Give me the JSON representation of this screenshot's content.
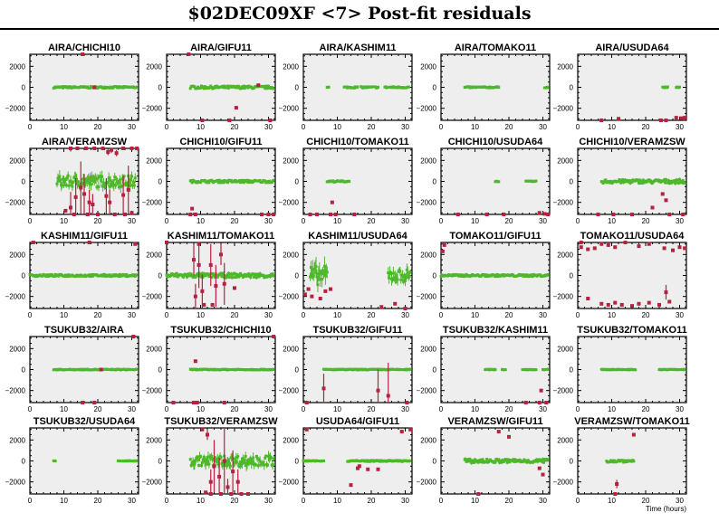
{
  "title": "$02DEC09XF <7> Post-fit residuals",
  "colors": {
    "good": "#4db82a",
    "bad": "#b5213f",
    "plot_bg": "#eeeeee"
  },
  "chart_data": {
    "type": "scatter",
    "xlabel": "Time (hours)",
    "xlim": [
      0,
      32
    ],
    "ylim": [
      -3150,
      3150
    ],
    "xticks": [
      "0",
      "10",
      "20",
      "30"
    ],
    "yticks": [
      {
        "v": 2000,
        "label": "2000"
      },
      {
        "v": 0,
        "label": "0"
      },
      {
        "v": -2000,
        "label": "−2000"
      }
    ],
    "panels": [
      {
        "name": "AIRA/CHICHI10",
        "good": [
          [
            7,
            31.5,
            80
          ]
        ],
        "bad": [
          [
            15.5,
            3150,
            0
          ],
          [
            19,
            0,
            0
          ]
        ]
      },
      {
        "name": "AIRA/GIFU11",
        "good": [
          [
            7,
            31.5,
            130
          ]
        ],
        "bad": [
          [
            6.5,
            3150,
            0
          ],
          [
            10.5,
            -3150,
            0
          ],
          [
            18.5,
            -3150,
            0
          ],
          [
            20.5,
            -1950,
            0
          ],
          [
            27,
            200,
            0
          ],
          [
            30.5,
            -3150,
            0
          ]
        ]
      },
      {
        "name": "AIRA/KASHIM11",
        "good": [
          [
            7,
            7.5,
            40
          ],
          [
            12,
            16,
            70
          ],
          [
            17,
            22,
            70
          ],
          [
            24,
            31,
            70
          ]
        ],
        "bad": []
      },
      {
        "name": "AIRA/TOMAKO11",
        "good": [
          [
            7,
            17,
            60
          ],
          [
            30.5,
            31.5,
            50
          ]
        ],
        "bad": []
      },
      {
        "name": "AIRA/USUDA64",
        "good": [
          [
            25,
            26.5,
            40
          ],
          [
            29,
            30,
            40
          ]
        ],
        "bad": [
          [
            7,
            -3150,
            0
          ],
          [
            12,
            -3000,
            0
          ],
          [
            24.5,
            -3150,
            0
          ],
          [
            26,
            -3150,
            0
          ],
          [
            29,
            -2900,
            0
          ],
          [
            30.5,
            -2950,
            0
          ],
          [
            31.5,
            -2900,
            0
          ]
        ]
      },
      {
        "name": "AIRA/VERAMZSW",
        "good": [
          [
            8,
            31,
            550
          ]
        ],
        "bad": [
          [
            12,
            3150,
            300
          ],
          [
            14,
            3150,
            0
          ],
          [
            16.5,
            3150,
            0
          ],
          [
            19,
            3150,
            0
          ],
          [
            21.5,
            3150,
            0
          ],
          [
            23,
            2800,
            300
          ],
          [
            24,
            3000,
            300
          ],
          [
            25.5,
            2700,
            300
          ],
          [
            27.5,
            3150,
            0
          ],
          [
            30,
            3150,
            0
          ],
          [
            31.5,
            3150,
            0
          ],
          [
            10.5,
            -2800,
            0
          ],
          [
            12,
            -2500,
            1500
          ],
          [
            13.5,
            -1500,
            1800
          ],
          [
            15,
            -600,
            2500
          ],
          [
            16,
            -1200,
            1900
          ],
          [
            17.5,
            -2000,
            1200
          ],
          [
            18.5,
            -2200,
            1000
          ],
          [
            22.5,
            -1400,
            1700
          ],
          [
            23.5,
            -2000,
            1200
          ],
          [
            27.5,
            -1300,
            1800
          ],
          [
            29,
            -800,
            2300
          ],
          [
            30,
            -3000,
            0
          ],
          [
            13,
            -3150,
            0
          ],
          [
            17,
            -3150,
            0
          ],
          [
            20,
            -3150,
            0
          ],
          [
            25,
            -3150,
            0
          ],
          [
            28,
            -3150,
            0
          ]
        ]
      },
      {
        "name": "CHICHI10/GIFU11",
        "good": [
          [
            7,
            31.5,
            120
          ]
        ],
        "bad": [
          [
            7.5,
            -2600,
            0
          ],
          [
            7,
            -3150,
            0
          ],
          [
            8.5,
            -3150,
            0
          ],
          [
            28,
            -3150,
            0
          ],
          [
            30,
            -3150,
            0
          ],
          [
            31.5,
            -3150,
            0
          ]
        ]
      },
      {
        "name": "CHICHI10/TOMAKO11",
        "good": [
          [
            7,
            13.5,
            70
          ]
        ],
        "bad": [
          [
            8.5,
            -2000,
            0
          ],
          [
            2,
            -3150,
            0
          ],
          [
            4,
            -3150,
            0
          ],
          [
            8,
            -3150,
            0
          ],
          [
            9.5,
            -3150,
            0
          ],
          [
            15,
            -3150,
            0
          ]
        ]
      },
      {
        "name": "CHICHI10/USUDA64",
        "good": [
          [
            16,
            17,
            30
          ],
          [
            25,
            28,
            40
          ]
        ],
        "bad": [
          [
            5,
            -3150,
            0
          ],
          [
            13.5,
            -3150,
            0
          ],
          [
            18.5,
            -3150,
            0
          ],
          [
            29,
            -3000,
            0
          ],
          [
            30.5,
            -3100,
            0
          ],
          [
            31.5,
            -3150,
            0
          ]
        ]
      },
      {
        "name": "CHICHI10/VERAMZSW",
        "good": [
          [
            7,
            31.5,
            180
          ]
        ],
        "bad": [
          [
            6,
            -3150,
            0
          ],
          [
            10.5,
            -3150,
            0
          ],
          [
            16,
            -3150,
            0
          ],
          [
            22,
            -2500,
            0
          ],
          [
            25,
            -1200,
            0
          ],
          [
            26,
            -1800,
            0
          ],
          [
            27,
            -3150,
            0
          ],
          [
            31,
            -3150,
            0
          ]
        ]
      },
      {
        "name": "KASHIM11/GIFU11",
        "good": [
          [
            0,
            31.5,
            100
          ]
        ],
        "bad": [
          [
            1,
            3150,
            0
          ],
          [
            17.5,
            3150,
            0
          ],
          [
            31,
            3000,
            0
          ]
        ]
      },
      {
        "name": "KASHIM11/TOMAKO11",
        "good": [
          [
            0,
            31.5,
            200
          ]
        ],
        "bad": [
          [
            8,
            1500,
            1500
          ],
          [
            8.5,
            -2000,
            1200
          ],
          [
            9.5,
            1000,
            2200
          ],
          [
            10.5,
            -1500,
            1600
          ],
          [
            11,
            -2800,
            0
          ],
          [
            13,
            1000,
            2000
          ],
          [
            13.5,
            -2800,
            0
          ],
          [
            14.5,
            -1000,
            2000
          ],
          [
            16,
            2000,
            1000
          ],
          [
            17,
            -800,
            2000
          ],
          [
            20,
            -1200,
            0
          ],
          [
            0,
            3150,
            0
          ],
          [
            9.5,
            3000,
            0
          ]
        ]
      },
      {
        "name": "KASHIM11/USUDA64",
        "good": [
          [
            2,
            7,
            900
          ],
          [
            25,
            31.5,
            600
          ]
        ],
        "bad": [
          [
            0.5,
            -1800,
            0
          ],
          [
            1.5,
            -1300,
            0
          ],
          [
            2.5,
            -2000,
            0
          ],
          [
            5,
            -2200,
            0
          ],
          [
            6.5,
            -1500,
            0
          ],
          [
            8,
            -1300,
            0
          ],
          [
            23,
            -3000,
            0
          ],
          [
            27,
            -2700,
            0
          ],
          [
            30,
            -3150,
            0
          ]
        ]
      },
      {
        "name": "TOMAKO11/GIFU11",
        "good": [
          [
            0,
            31.5,
            100
          ]
        ],
        "bad": [
          [
            0.5,
            2300,
            0
          ],
          [
            1,
            2900,
            0
          ]
        ]
      },
      {
        "name": "TOMAKO11/USUDA64",
        "good": [],
        "bad": [
          [
            1,
            2700,
            0
          ],
          [
            1,
            3150,
            0
          ],
          [
            3,
            2500,
            0
          ],
          [
            5,
            2600,
            0
          ],
          [
            7,
            3000,
            0
          ],
          [
            9,
            2900,
            0
          ],
          [
            11,
            2700,
            0
          ],
          [
            14,
            3150,
            0
          ],
          [
            18,
            2800,
            0
          ],
          [
            21,
            3000,
            0
          ],
          [
            25.5,
            2600,
            0
          ],
          [
            28,
            2400,
            0
          ],
          [
            30,
            2700,
            0
          ],
          [
            31.5,
            2600,
            0
          ],
          [
            7,
            -2700,
            0
          ],
          [
            9,
            -2800,
            0
          ],
          [
            11,
            -2600,
            0
          ],
          [
            13,
            -2800,
            0
          ],
          [
            16,
            -2900,
            0
          ],
          [
            18,
            -2700,
            0
          ],
          [
            21,
            -2600,
            0
          ],
          [
            24,
            -2800,
            0
          ],
          [
            26,
            -1600,
            700
          ],
          [
            27,
            -2500,
            0
          ],
          [
            3,
            -2200,
            0
          ]
        ]
      },
      {
        "name": "TSUKUB32/AIRA",
        "good": [
          [
            7,
            31.5,
            40
          ]
        ],
        "bad": [
          [
            15.5,
            -3150,
            0
          ],
          [
            19,
            -3150,
            0
          ],
          [
            21,
            0,
            0
          ],
          [
            30.5,
            3150,
            0
          ]
        ]
      },
      {
        "name": "TSUKUB32/CHICHI10",
        "good": [
          [
            7,
            31.5,
            40
          ]
        ],
        "bad": [
          [
            8.5,
            800,
            0
          ],
          [
            2,
            -3150,
            0
          ],
          [
            8,
            -3150,
            0
          ],
          [
            9,
            -3150,
            0
          ],
          [
            17,
            -3150,
            0
          ],
          [
            31.5,
            3150,
            0
          ]
        ]
      },
      {
        "name": "TSUKUB32/GIFU11",
        "good": [
          [
            6,
            31.5,
            40
          ]
        ],
        "bad": [
          [
            6,
            -1800,
            1400
          ],
          [
            22,
            -2000,
            2000
          ],
          [
            25,
            -2500,
            3150
          ],
          [
            1,
            -3150,
            0
          ],
          [
            30.5,
            -3150,
            0
          ]
        ]
      },
      {
        "name": "TSUKUB32/KASHIM11",
        "good": [
          [
            13,
            16,
            30
          ],
          [
            18,
            19,
            30
          ],
          [
            24,
            28,
            30
          ],
          [
            30,
            31.5,
            30
          ]
        ],
        "bad": [
          [
            29.5,
            -2000,
            0
          ],
          [
            25,
            -3150,
            0
          ],
          [
            29,
            -3150,
            0
          ],
          [
            31,
            -3150,
            0
          ]
        ]
      },
      {
        "name": "TSUKUB32/TOMAKO11",
        "good": [
          [
            7,
            17,
            30
          ],
          [
            24,
            31.5,
            30
          ]
        ],
        "bad": []
      },
      {
        "name": "TSUKUB32/USUDA64",
        "good": [
          [
            7,
            7.5,
            20
          ],
          [
            26,
            31.5,
            30
          ]
        ],
        "bad": []
      },
      {
        "name": "TSUKUB32/VERAMZSW",
        "good": [
          [
            7,
            31.5,
            500
          ]
        ],
        "bad": [
          [
            10.5,
            3000,
            0
          ],
          [
            12,
            2500,
            500
          ],
          [
            13,
            -2000,
            1200
          ],
          [
            14,
            -500,
            2500
          ],
          [
            15.5,
            -1500,
            1800
          ],
          [
            17,
            0,
            3150
          ],
          [
            18,
            -2500,
            800
          ],
          [
            19.5,
            -1000,
            2000
          ],
          [
            21,
            -2000,
            1200
          ],
          [
            11.5,
            -3000,
            0
          ],
          [
            13,
            -3150,
            0
          ],
          [
            16,
            -3150,
            0
          ],
          [
            19,
            -3150,
            0
          ],
          [
            22,
            -3150,
            0
          ],
          [
            24,
            -3150,
            0
          ]
        ]
      },
      {
        "name": "USUDA64/GIFU11",
        "good": [
          [
            0,
            6,
            30
          ],
          [
            13,
            31.5,
            60
          ]
        ],
        "bad": [
          [
            1,
            3000,
            0
          ],
          [
            14,
            -2300,
            0
          ],
          [
            16,
            -700,
            0
          ],
          [
            16.5,
            -500,
            0
          ],
          [
            19,
            -800,
            0
          ],
          [
            22,
            -800,
            0
          ],
          [
            29,
            2800,
            0
          ],
          [
            31.5,
            3000,
            0
          ]
        ]
      },
      {
        "name": "VERAMZSW/GIFU11",
        "good": [
          [
            7,
            31.5,
            180
          ]
        ],
        "bad": [
          [
            17,
            2800,
            0
          ],
          [
            20,
            2300,
            0
          ],
          [
            29,
            -700,
            0
          ],
          [
            30,
            -1300,
            0
          ],
          [
            11,
            -3150,
            0
          ]
        ]
      },
      {
        "name": "VERAMZSW/TOMAKO11",
        "good": [
          [
            8.5,
            16.5,
            130
          ]
        ],
        "bad": [
          [
            16.5,
            2500,
            0
          ],
          [
            11.5,
            -2200,
            400
          ],
          [
            11,
            -3150,
            0
          ]
        ]
      }
    ]
  }
}
